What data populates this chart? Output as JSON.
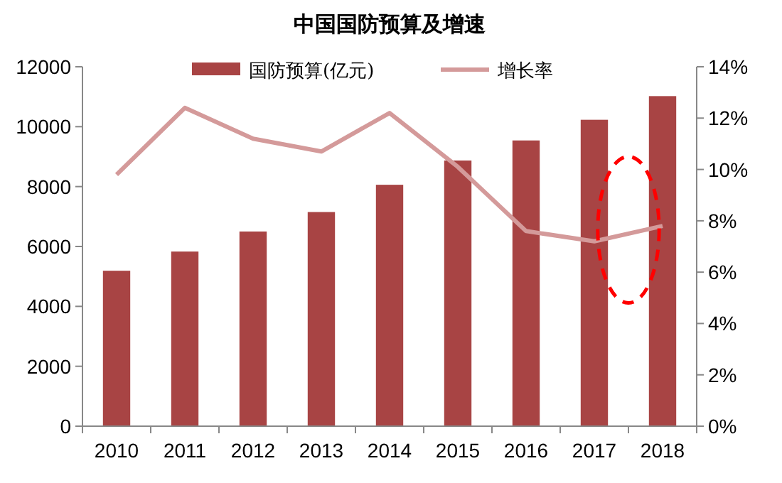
{
  "chart_data": {
    "type": "bar",
    "title": "中国国防预算及增速",
    "categories": [
      "2010",
      "2011",
      "2012",
      "2013",
      "2014",
      "2015",
      "2016",
      "2017",
      "2018"
    ],
    "series": [
      {
        "name": "国防预算(亿元)",
        "color": "#a84444",
        "values": [
          5190,
          5830,
          6500,
          7150,
          8060,
          8870,
          9540,
          10230,
          11020
        ]
      },
      {
        "name": "增长率",
        "type": "line",
        "axis": "y2",
        "color": "#d49a9a",
        "values": [
          9.8,
          12.4,
          11.2,
          10.7,
          12.2,
          10.1,
          7.6,
          7.2,
          7.8
        ]
      }
    ],
    "ylim": [
      0,
      12000
    ],
    "yticks": [
      0,
      2000,
      4000,
      6000,
      8000,
      10000,
      12000
    ],
    "y2lim": [
      0,
      14
    ],
    "y2ticks": [
      {
        "value": 0,
        "label": "0%"
      },
      {
        "value": 2,
        "label": "2%"
      },
      {
        "value": 4,
        "label": "4%"
      },
      {
        "value": 6,
        "label": "6%"
      },
      {
        "value": 8,
        "label": "8%"
      },
      {
        "value": 10,
        "label": "10%"
      },
      {
        "value": 12,
        "label": "12%"
      },
      {
        "value": 14,
        "label": "14%"
      }
    ],
    "legend": "top",
    "grid": false
  }
}
